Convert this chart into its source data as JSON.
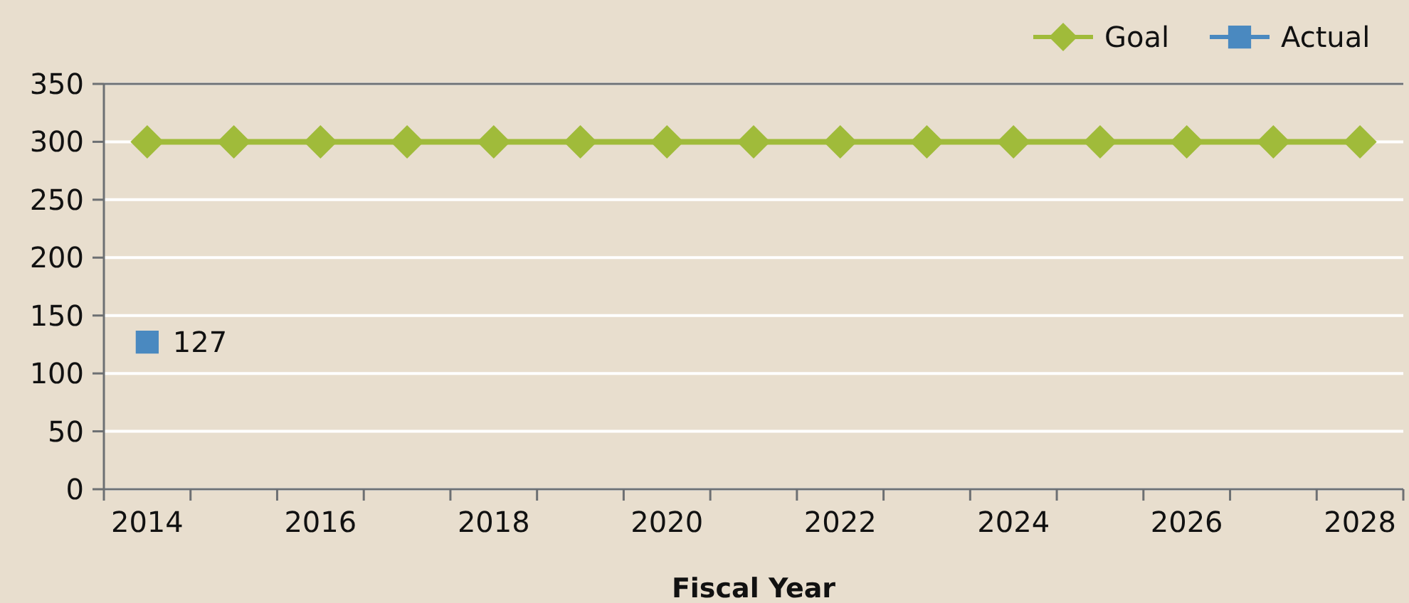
{
  "chart_data": {
    "type": "line",
    "xlabel": "Fiscal Year",
    "categories": [
      "2014",
      null,
      "2016",
      null,
      "2018",
      null,
      "2020",
      null,
      "2022",
      null,
      "2024",
      null,
      "2026",
      null,
      "2028"
    ],
    "series": [
      {
        "name": "Goal",
        "color": "#a0bb3a",
        "marker": "diamond",
        "values": [
          300,
          300,
          300,
          300,
          300,
          300,
          300,
          300,
          300,
          300,
          300,
          300,
          300,
          300,
          300
        ]
      },
      {
        "name": "Actual",
        "color": "#4a89c0",
        "marker": "square",
        "values": [
          127,
          null,
          null,
          null,
          null,
          null,
          null,
          null,
          null,
          null,
          null,
          null,
          null,
          null,
          null
        ],
        "value_labels": [
          "127",
          null,
          null,
          null,
          null,
          null,
          null,
          null,
          null,
          null,
          null,
          null,
          null,
          null,
          null
        ]
      }
    ],
    "ylim": [
      0,
      350
    ],
    "yticks": [
      0,
      50,
      100,
      150,
      200,
      250,
      300,
      350
    ],
    "grid": "y",
    "legend": "top right",
    "line_style": "solid"
  }
}
